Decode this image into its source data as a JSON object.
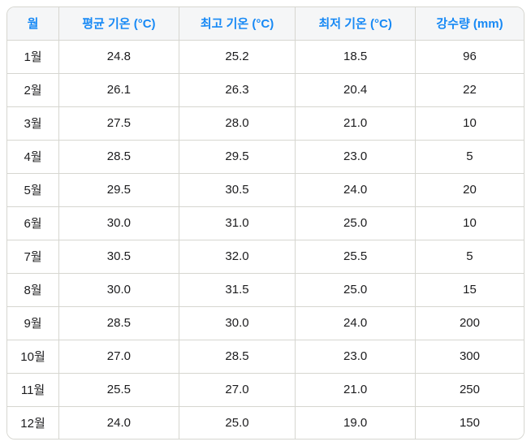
{
  "colors": {
    "accent": "#1789F5",
    "border": "#D6D6D0",
    "header_bg": "#F5F6F7",
    "row_bg": "#FFFFFF",
    "text": "#1C1C1E",
    "page_bg": "#FFFFFF"
  },
  "table": {
    "headers": [
      "월",
      "평균 기온 (°C)",
      "최고 기온 (°C)",
      "최저 기온 (°C)",
      "강수량 (mm)"
    ],
    "rows": [
      [
        "1월",
        "24.8",
        "25.2",
        "18.5",
        "96"
      ],
      [
        "2월",
        "26.1",
        "26.3",
        "20.4",
        "22"
      ],
      [
        "3월",
        "27.5",
        "28.0",
        "21.0",
        "10"
      ],
      [
        "4월",
        "28.5",
        "29.5",
        "23.0",
        "5"
      ],
      [
        "5월",
        "29.5",
        "30.5",
        "24.0",
        "20"
      ],
      [
        "6월",
        "30.0",
        "31.0",
        "25.0",
        "10"
      ],
      [
        "7월",
        "30.5",
        "32.0",
        "25.5",
        "5"
      ],
      [
        "8월",
        "30.0",
        "31.5",
        "25.0",
        "15"
      ],
      [
        "9월",
        "28.5",
        "30.0",
        "24.0",
        "200"
      ],
      [
        "10월",
        "27.0",
        "28.5",
        "23.0",
        "300"
      ],
      [
        "11월",
        "25.5",
        "27.0",
        "21.0",
        "250"
      ],
      [
        "12월",
        "24.0",
        "25.0",
        "19.0",
        "150"
      ]
    ]
  },
  "chart_data": {
    "type": "table",
    "title": "",
    "columns": [
      "월",
      "평균 기온 (°C)",
      "최고 기온 (°C)",
      "최저 기온 (°C)",
      "강수량 (mm)"
    ],
    "categories": [
      "1월",
      "2월",
      "3월",
      "4월",
      "5월",
      "6월",
      "7월",
      "8월",
      "9월",
      "10월",
      "11월",
      "12월"
    ],
    "series": [
      {
        "name": "평균 기온 (°C)",
        "values": [
          24.8,
          26.1,
          27.5,
          28.5,
          29.5,
          30.0,
          30.5,
          30.0,
          28.5,
          27.0,
          25.5,
          24.0
        ]
      },
      {
        "name": "최고 기온 (°C)",
        "values": [
          25.2,
          26.3,
          28.0,
          29.5,
          30.5,
          31.0,
          32.0,
          31.5,
          30.0,
          28.5,
          27.0,
          25.0
        ]
      },
      {
        "name": "최저 기온 (°C)",
        "values": [
          18.5,
          20.4,
          21.0,
          23.0,
          24.0,
          25.0,
          25.5,
          25.0,
          24.0,
          23.0,
          21.0,
          19.0
        ]
      },
      {
        "name": "강수량 (mm)",
        "values": [
          96,
          22,
          10,
          5,
          20,
          10,
          5,
          15,
          200,
          300,
          250,
          150
        ]
      }
    ]
  }
}
